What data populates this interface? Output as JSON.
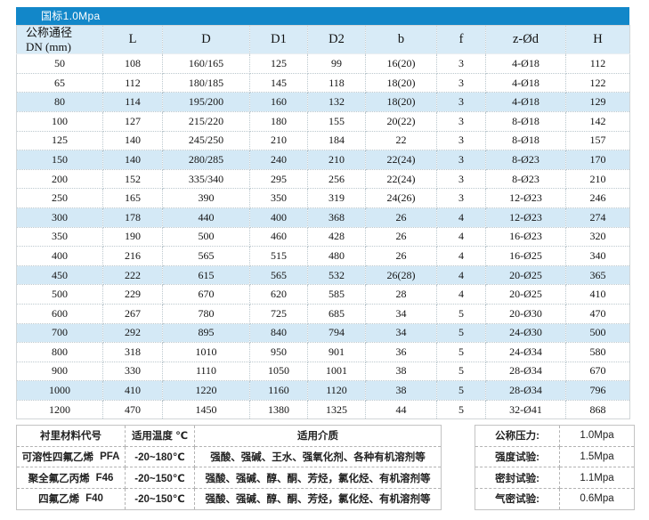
{
  "topbar": {
    "title": "国标1.0Mpa"
  },
  "colors": {
    "topbar_bg": "#1287c9",
    "header_row_bg": "#d8ebf7",
    "highlight_row_bg": "#d4e9f6"
  },
  "spec_table": {
    "dn_header_line1": "公称通径",
    "dn_header_line2": "DN (mm)",
    "columns": [
      "L",
      "D",
      "D1",
      "D2",
      "b",
      "f",
      "z-Ød",
      "H"
    ],
    "rows": [
      {
        "highlight": false,
        "cells": [
          "50",
          "108",
          "160/165",
          "125",
          "99",
          "16(20)",
          "3",
          "4-Ø18",
          "112"
        ]
      },
      {
        "highlight": false,
        "cells": [
          "65",
          "112",
          "180/185",
          "145",
          "118",
          "18(20)",
          "3",
          "4-Ø18",
          "122"
        ]
      },
      {
        "highlight": true,
        "cells": [
          "80",
          "114",
          "195/200",
          "160",
          "132",
          "18(20)",
          "3",
          "4-Ø18",
          "129"
        ]
      },
      {
        "highlight": false,
        "cells": [
          "100",
          "127",
          "215/220",
          "180",
          "155",
          "20(22)",
          "3",
          "8-Ø18",
          "142"
        ]
      },
      {
        "highlight": false,
        "cells": [
          "125",
          "140",
          "245/250",
          "210",
          "184",
          "22",
          "3",
          "8-Ø18",
          "157"
        ]
      },
      {
        "highlight": true,
        "cells": [
          "150",
          "140",
          "280/285",
          "240",
          "210",
          "22(24)",
          "3",
          "8-Ø23",
          "170"
        ]
      },
      {
        "highlight": false,
        "cells": [
          "200",
          "152",
          "335/340",
          "295",
          "256",
          "22(24)",
          "3",
          "8-Ø23",
          "210"
        ]
      },
      {
        "highlight": false,
        "cells": [
          "250",
          "165",
          "390",
          "350",
          "319",
          "24(26)",
          "3",
          "12-Ø23",
          "246"
        ]
      },
      {
        "highlight": true,
        "cells": [
          "300",
          "178",
          "440",
          "400",
          "368",
          "26",
          "4",
          "12-Ø23",
          "274"
        ]
      },
      {
        "highlight": false,
        "cells": [
          "350",
          "190",
          "500",
          "460",
          "428",
          "26",
          "4",
          "16-Ø23",
          "320"
        ]
      },
      {
        "highlight": false,
        "cells": [
          "400",
          "216",
          "565",
          "515",
          "480",
          "26",
          "4",
          "16-Ø25",
          "340"
        ]
      },
      {
        "highlight": true,
        "cells": [
          "450",
          "222",
          "615",
          "565",
          "532",
          "26(28)",
          "4",
          "20-Ø25",
          "365"
        ]
      },
      {
        "highlight": false,
        "cells": [
          "500",
          "229",
          "670",
          "620",
          "585",
          "28",
          "4",
          "20-Ø25",
          "410"
        ]
      },
      {
        "highlight": false,
        "cells": [
          "600",
          "267",
          "780",
          "725",
          "685",
          "34",
          "5",
          "20-Ø30",
          "470"
        ]
      },
      {
        "highlight": true,
        "cells": [
          "700",
          "292",
          "895",
          "840",
          "794",
          "34",
          "5",
          "24-Ø30",
          "500"
        ]
      },
      {
        "highlight": false,
        "cells": [
          "800",
          "318",
          "1010",
          "950",
          "901",
          "36",
          "5",
          "24-Ø34",
          "580"
        ]
      },
      {
        "highlight": false,
        "cells": [
          "900",
          "330",
          "1110",
          "1050",
          "1001",
          "38",
          "5",
          "28-Ø34",
          "670"
        ]
      },
      {
        "highlight": true,
        "cells": [
          "1000",
          "410",
          "1220",
          "1160",
          "1120",
          "38",
          "5",
          "28-Ø34",
          "796"
        ]
      },
      {
        "highlight": false,
        "cells": [
          "1200",
          "470",
          "1450",
          "1380",
          "1325",
          "44",
          "5",
          "32-Ø41",
          "868"
        ]
      }
    ]
  },
  "materials_table": {
    "headers": [
      "衬里材料代号",
      "适用温度 ℃",
      "适用介质"
    ],
    "rows": [
      {
        "material": "可溶性四氟乙烯",
        "code": "PFA",
        "temp": "-20~180℃",
        "media": "强酸、强碱、王水、强氧化剂、各种有机溶剂等"
      },
      {
        "material": "聚全氟乙丙烯",
        "code": "F46",
        "temp": "-20~150℃",
        "media": "强酸、强碱、醇、酮、芳烃，氯化烃、有机溶剂等"
      },
      {
        "material": "四氟乙烯",
        "code": "F40",
        "temp": "-20~150℃",
        "media": "强酸、强碱、醇、酮、芳烃，氯化烃、有机溶剂等"
      }
    ]
  },
  "pressure_table": {
    "rows": [
      {
        "label": "公称压力:",
        "value": "1.0Mpa"
      },
      {
        "label": "强度试验:",
        "value": "1.5Mpa"
      },
      {
        "label": "密封试验:",
        "value": "1.1Mpa"
      },
      {
        "label": "气密试验:",
        "value": "0.6Mpa"
      }
    ]
  }
}
